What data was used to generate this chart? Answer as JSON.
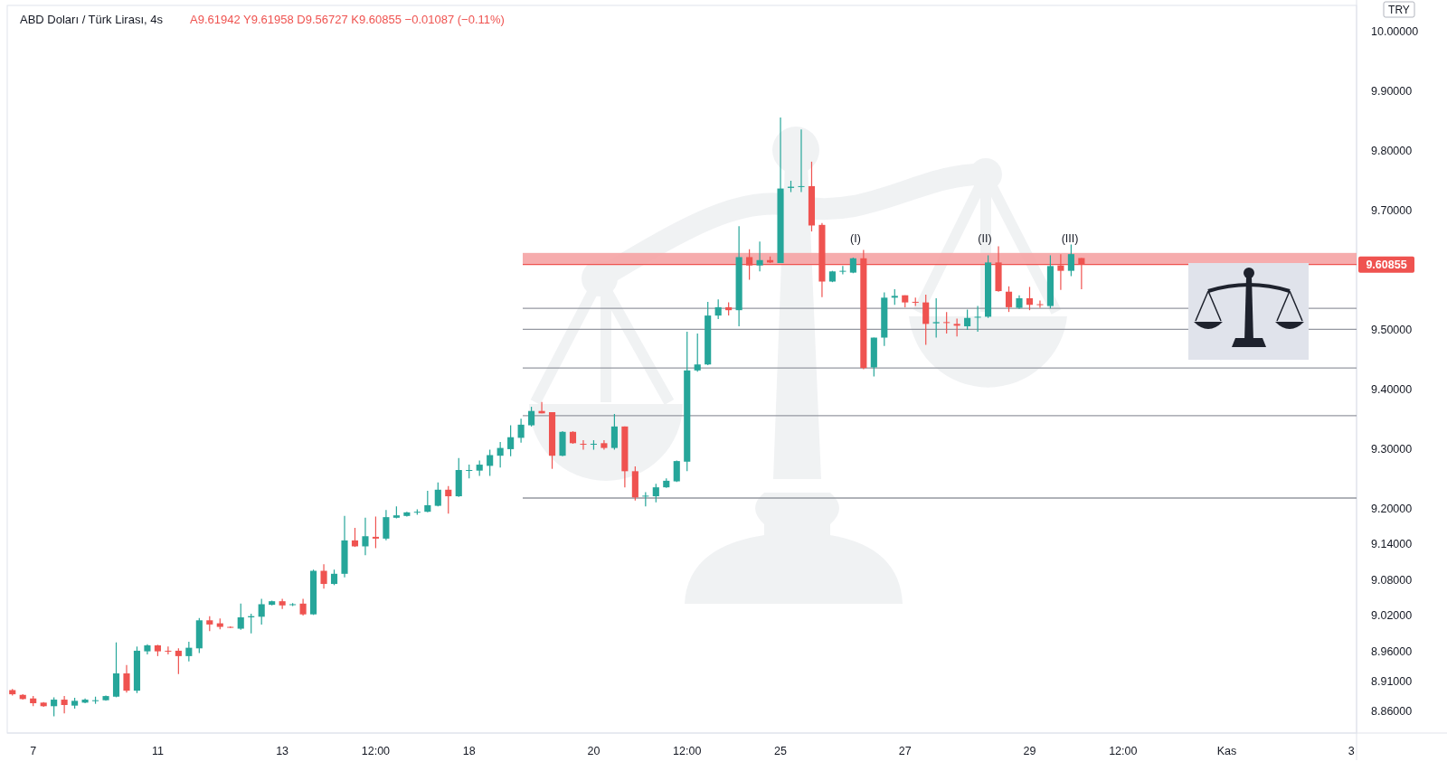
{
  "chart_data": {
    "type": "candlestick",
    "title": "ABD Doları / Türk Lirası, 4s",
    "subtitle": "A9.61942 Y9.61958 D9.56727 K9.60855 −0.01087 (−0.11%)",
    "categories": [
      null,
      null,
      "7",
      null,
      null,
      null,
      null,
      null,
      null,
      null,
      null,
      null,
      null,
      null,
      "11",
      null,
      null,
      null,
      null,
      null,
      null,
      null,
      null,
      null,
      null,
      null,
      "13",
      null,
      null,
      null,
      null,
      null,
      null,
      null,
      null,
      "12:00",
      null,
      null,
      null,
      null,
      null,
      null,
      null,
      null,
      "18",
      null,
      null,
      null,
      null,
      null,
      null,
      null,
      null,
      null,
      null,
      null,
      "20",
      null,
      null,
      null,
      null,
      null,
      null,
      null,
      null,
      "12:00",
      null,
      null,
      null,
      null,
      null,
      null,
      null,
      null,
      "25",
      null,
      null,
      null,
      null,
      null,
      null,
      null,
      null,
      null,
      null,
      null,
      "27",
      null,
      null,
      null,
      null,
      null,
      null,
      null,
      null,
      null,
      null,
      null,
      "29",
      null,
      null,
      null,
      null,
      null,
      null,
      null,
      null,
      "12:00",
      null,
      null,
      null,
      null,
      null,
      null,
      null,
      null,
      null,
      "Kas",
      null,
      null,
      null,
      null,
      null,
      null,
      null,
      null,
      null,
      null,
      null,
      "3"
    ],
    "ohlc": [
      [
        8.895,
        8.897,
        8.886,
        8.888
      ],
      [
        8.887,
        8.888,
        8.879,
        8.88
      ],
      [
        8.881,
        8.885,
        8.868,
        8.873
      ],
      [
        8.874,
        8.875,
        8.867,
        8.868
      ],
      [
        8.868,
        8.883,
        8.851,
        8.879
      ],
      [
        8.879,
        8.885,
        8.856,
        8.87
      ],
      [
        8.869,
        8.882,
        8.864,
        8.877
      ],
      [
        8.874,
        8.881,
        8.873,
        8.879
      ],
      [
        8.877,
        8.884,
        8.872,
        8.878
      ],
      [
        8.878,
        8.886,
        8.877,
        8.885
      ],
      [
        8.884,
        8.975,
        8.883,
        8.923
      ],
      [
        8.923,
        8.937,
        8.891,
        8.894
      ],
      [
        8.894,
        8.968,
        8.89,
        8.961
      ],
      [
        8.96,
        8.972,
        8.955,
        8.97
      ],
      [
        8.97,
        8.971,
        8.952,
        8.96
      ],
      [
        8.961,
        8.968,
        8.955,
        8.96
      ],
      [
        8.961,
        8.965,
        8.922,
        8.952
      ],
      [
        8.952,
        8.976,
        8.943,
        8.966
      ],
      [
        8.965,
        9.016,
        8.957,
        9.012
      ],
      [
        9.012,
        9.019,
        8.994,
        9.005
      ],
      [
        9.007,
        9.015,
        8.997,
        9.001
      ],
      [
        9.001,
        9.002,
        8.999,
        9.0
      ],
      [
        8.998,
        9.04,
        8.996,
        9.017
      ],
      [
        9.017,
        9.023,
        8.99,
        9.019
      ],
      [
        9.018,
        9.048,
        9.005,
        9.039
      ],
      [
        9.038,
        9.045,
        9.037,
        9.044
      ],
      [
        9.044,
        9.048,
        9.031,
        9.037
      ],
      [
        9.038,
        9.041,
        9.036,
        9.039
      ],
      [
        9.04,
        9.048,
        9.02,
        9.022
      ],
      [
        9.022,
        9.097,
        9.021,
        9.095
      ],
      [
        9.095,
        9.106,
        9.065,
        9.073
      ],
      [
        9.073,
        9.097,
        9.071,
        9.09
      ],
      [
        9.09,
        9.187,
        9.084,
        9.146
      ],
      [
        9.146,
        9.167,
        9.135,
        9.136
      ],
      [
        9.136,
        9.184,
        9.121,
        9.153
      ],
      [
        9.152,
        9.186,
        9.133,
        9.149
      ],
      [
        9.149,
        9.197,
        9.146,
        9.185
      ],
      [
        9.184,
        9.203,
        9.183,
        9.188
      ],
      [
        9.187,
        9.194,
        9.186,
        9.193
      ],
      [
        9.193,
        9.198,
        9.189,
        9.194
      ],
      [
        9.194,
        9.229,
        9.193,
        9.205
      ],
      [
        9.204,
        9.243,
        9.203,
        9.231
      ],
      [
        9.231,
        9.237,
        9.191,
        9.22
      ],
      [
        9.22,
        9.284,
        9.219,
        9.264
      ],
      [
        9.263,
        9.273,
        9.25,
        9.264
      ],
      [
        9.263,
        9.28,
        9.254,
        9.273
      ],
      [
        9.271,
        9.298,
        9.254,
        9.289
      ],
      [
        9.288,
        9.311,
        9.268,
        9.301
      ],
      [
        9.299,
        9.339,
        9.287,
        9.319
      ],
      [
        9.318,
        9.35,
        9.31,
        9.34
      ],
      [
        9.339,
        9.37,
        9.337,
        9.363
      ],
      [
        9.363,
        9.378,
        9.359,
        9.359
      ],
      [
        9.361,
        9.361,
        9.266,
        9.288
      ],
      [
        9.288,
        9.329,
        9.287,
        9.328
      ],
      [
        9.328,
        9.329,
        9.308,
        9.309
      ],
      [
        9.308,
        9.314,
        9.298,
        9.307
      ],
      [
        9.307,
        9.314,
        9.298,
        9.308
      ],
      [
        9.309,
        9.314,
        9.298,
        9.301
      ],
      [
        9.301,
        9.358,
        9.298,
        9.337
      ],
      [
        9.337,
        9.337,
        9.235,
        9.262
      ],
      [
        9.262,
        9.27,
        9.213,
        9.218
      ],
      [
        9.22,
        9.227,
        9.203,
        9.221
      ],
      [
        9.22,
        9.241,
        9.21,
        9.235
      ],
      [
        9.235,
        9.25,
        9.234,
        9.246
      ],
      [
        9.245,
        9.28,
        9.244,
        9.279
      ],
      [
        9.278,
        9.496,
        9.262,
        9.431
      ],
      [
        9.431,
        9.493,
        9.429,
        9.441
      ],
      [
        9.441,
        9.546,
        9.44,
        9.523
      ],
      [
        9.523,
        9.55,
        9.517,
        9.537
      ],
      [
        9.537,
        9.545,
        9.523,
        9.532
      ],
      [
        9.532,
        9.673,
        9.505,
        9.621
      ],
      [
        9.621,
        9.634,
        9.583,
        9.607
      ],
      [
        9.607,
        9.647,
        9.597,
        9.616
      ],
      [
        9.616,
        9.622,
        9.611,
        9.612
      ],
      [
        9.611,
        9.855,
        9.611,
        9.736
      ],
      [
        9.737,
        9.749,
        9.73,
        9.739
      ],
      [
        9.739,
        9.835,
        9.73,
        9.74
      ],
      [
        9.74,
        9.781,
        9.664,
        9.674
      ],
      [
        9.675,
        9.678,
        9.554,
        9.58
      ],
      [
        9.58,
        9.598,
        9.579,
        9.597
      ],
      [
        9.597,
        9.606,
        9.592,
        9.598
      ],
      [
        9.595,
        9.62,
        9.594,
        9.619
      ],
      [
        9.619,
        9.633,
        9.433,
        9.435
      ],
      [
        9.436,
        9.486,
        9.421,
        9.486
      ],
      [
        9.486,
        9.562,
        9.472,
        9.553
      ],
      [
        9.553,
        9.567,
        9.541,
        9.556
      ],
      [
        9.557,
        9.557,
        9.537,
        9.545
      ],
      [
        9.546,
        9.553,
        9.539,
        9.545
      ],
      [
        9.545,
        9.558,
        9.474,
        9.509
      ],
      [
        9.51,
        9.552,
        9.486,
        9.512
      ],
      [
        9.512,
        9.529,
        9.493,
        9.511
      ],
      [
        9.509,
        9.518,
        9.488,
        9.506
      ],
      [
        9.505,
        9.533,
        9.499,
        9.519
      ],
      [
        9.52,
        9.539,
        9.496,
        9.521
      ],
      [
        9.521,
        9.624,
        9.519,
        9.612
      ],
      [
        9.612,
        9.639,
        9.563,
        9.564
      ],
      [
        9.563,
        9.572,
        9.529,
        9.537
      ],
      [
        9.536,
        9.557,
        9.534,
        9.552
      ],
      [
        9.552,
        9.571,
        9.532,
        9.541
      ],
      [
        9.542,
        9.548,
        9.536,
        9.541
      ],
      [
        9.539,
        9.624,
        9.535,
        9.606
      ],
      [
        9.607,
        9.626,
        9.566,
        9.598
      ],
      [
        9.598,
        9.642,
        9.589,
        9.626
      ],
      [
        9.61942,
        9.61958,
        9.56727,
        9.60855
      ],
      null,
      null,
      null,
      null,
      null,
      null,
      null,
      null,
      null,
      null,
      null,
      null,
      null,
      null,
      null,
      null,
      null,
      null,
      null,
      null,
      null,
      null,
      null,
      null,
      null,
      null
    ],
    "colors": [
      "#ef5350",
      "#ef5350",
      "#ef5350",
      "#ef5350",
      "#26a69a",
      "#ef5350",
      "#26a69a",
      "#26a69a",
      "#26a69a",
      "#26a69a",
      "#26a69a",
      "#ef5350",
      "#26a69a",
      "#26a69a",
      "#ef5350",
      "#ef5350",
      "#ef5350",
      "#26a69a",
      "#26a69a",
      "#ef5350",
      "#ef5350",
      "#ef5350",
      "#26a69a",
      "#26a69a",
      "#26a69a",
      "#26a69a",
      "#ef5350",
      "#26a69a",
      "#ef5350",
      "#26a69a",
      "#ef5350",
      "#26a69a",
      "#26a69a",
      "#ef5350",
      "#26a69a",
      "#ef5350",
      "#26a69a",
      "#26a69a",
      "#26a69a",
      "#26a69a",
      "#26a69a",
      "#26a69a",
      "#ef5350",
      "#26a69a",
      "#26a69a",
      "#26a69a",
      "#26a69a",
      "#26a69a",
      "#26a69a",
      "#26a69a",
      "#26a69a",
      "#ef5350",
      "#ef5350",
      "#26a69a",
      "#ef5350",
      "#ef5350",
      "#26a69a",
      "#ef5350",
      "#26a69a",
      "#ef5350",
      "#ef5350",
      "#26a69a",
      "#26a69a",
      "#26a69a",
      "#26a69a",
      "#26a69a",
      "#26a69a",
      "#26a69a",
      "#26a69a",
      "#ef5350",
      "#26a69a",
      "#ef5350",
      "#26a69a",
      "#ef5350",
      "#26a69a",
      "#26a69a",
      "#26a69a",
      "#ef5350",
      "#ef5350",
      "#26a69a",
      "#26a69a",
      "#26a69a",
      "#ef5350",
      "#26a69a",
      "#26a69a",
      "#26a69a",
      "#ef5350",
      "#ef5350",
      "#ef5350",
      "#26a69a",
      "#ef5350",
      "#ef5350",
      "#26a69a",
      "#26a69a",
      "#26a69a",
      "#ef5350",
      "#ef5350",
      "#26a69a",
      "#ef5350",
      "#ef5350",
      "#26a69a",
      "#ef5350",
      "#26a69a",
      "#ef5350",
      null,
      null,
      null,
      null,
      null,
      null,
      null,
      null,
      null,
      null,
      null,
      null,
      null,
      null,
      null,
      null,
      null,
      null,
      null,
      null,
      null,
      null,
      null,
      null,
      null,
      null
    ],
    "ylim": [
      8.823,
      10.043
    ],
    "yticks": [
      {
        "value": 10,
        "label": "10.00000"
      },
      {
        "value": 9.9,
        "label": "9.90000"
      },
      {
        "value": 9.8,
        "label": "9.80000"
      },
      {
        "value": 9.7,
        "label": "9.70000"
      },
      {
        "value": 9.5,
        "label": "9.50000"
      },
      {
        "value": 9.4,
        "label": "9.40000"
      },
      {
        "value": 9.3,
        "label": "9.30000"
      },
      {
        "value": 9.2,
        "label": "9.20000"
      },
      {
        "value": 9.14,
        "label": "9.14000"
      },
      {
        "value": 9.08,
        "label": "9.08000"
      },
      {
        "value": 9.02,
        "label": "9.02000"
      },
      {
        "value": 8.96,
        "label": "8.96000"
      },
      {
        "value": 8.91,
        "label": "8.91000"
      },
      {
        "value": 8.86,
        "label": "8.86000"
      }
    ],
    "bands": [
      {
        "axis": "y",
        "from": 9.60855,
        "to": 9.628,
        "color": "#f5a3a4"
      }
    ],
    "ref_lines": [
      {
        "axis": "y",
        "value": 9.60855,
        "label": "9.60855",
        "color": "#ef5350"
      },
      {
        "axis": "y",
        "value": 9.535,
        "color": "#9598a1"
      },
      {
        "axis": "y",
        "value": 9.5,
        "color": "#9598a1"
      },
      {
        "axis": "y",
        "value": 9.435,
        "color": "#9598a1"
      },
      {
        "axis": "y",
        "value": 9.355,
        "color": "#9598a1"
      },
      {
        "axis": "y",
        "value": 9.217,
        "color": "#9598a1"
      }
    ],
    "annotations": [
      "(I)",
      "(II)",
      "(III)",
      "TRY"
    ],
    "grid": false
  }
}
